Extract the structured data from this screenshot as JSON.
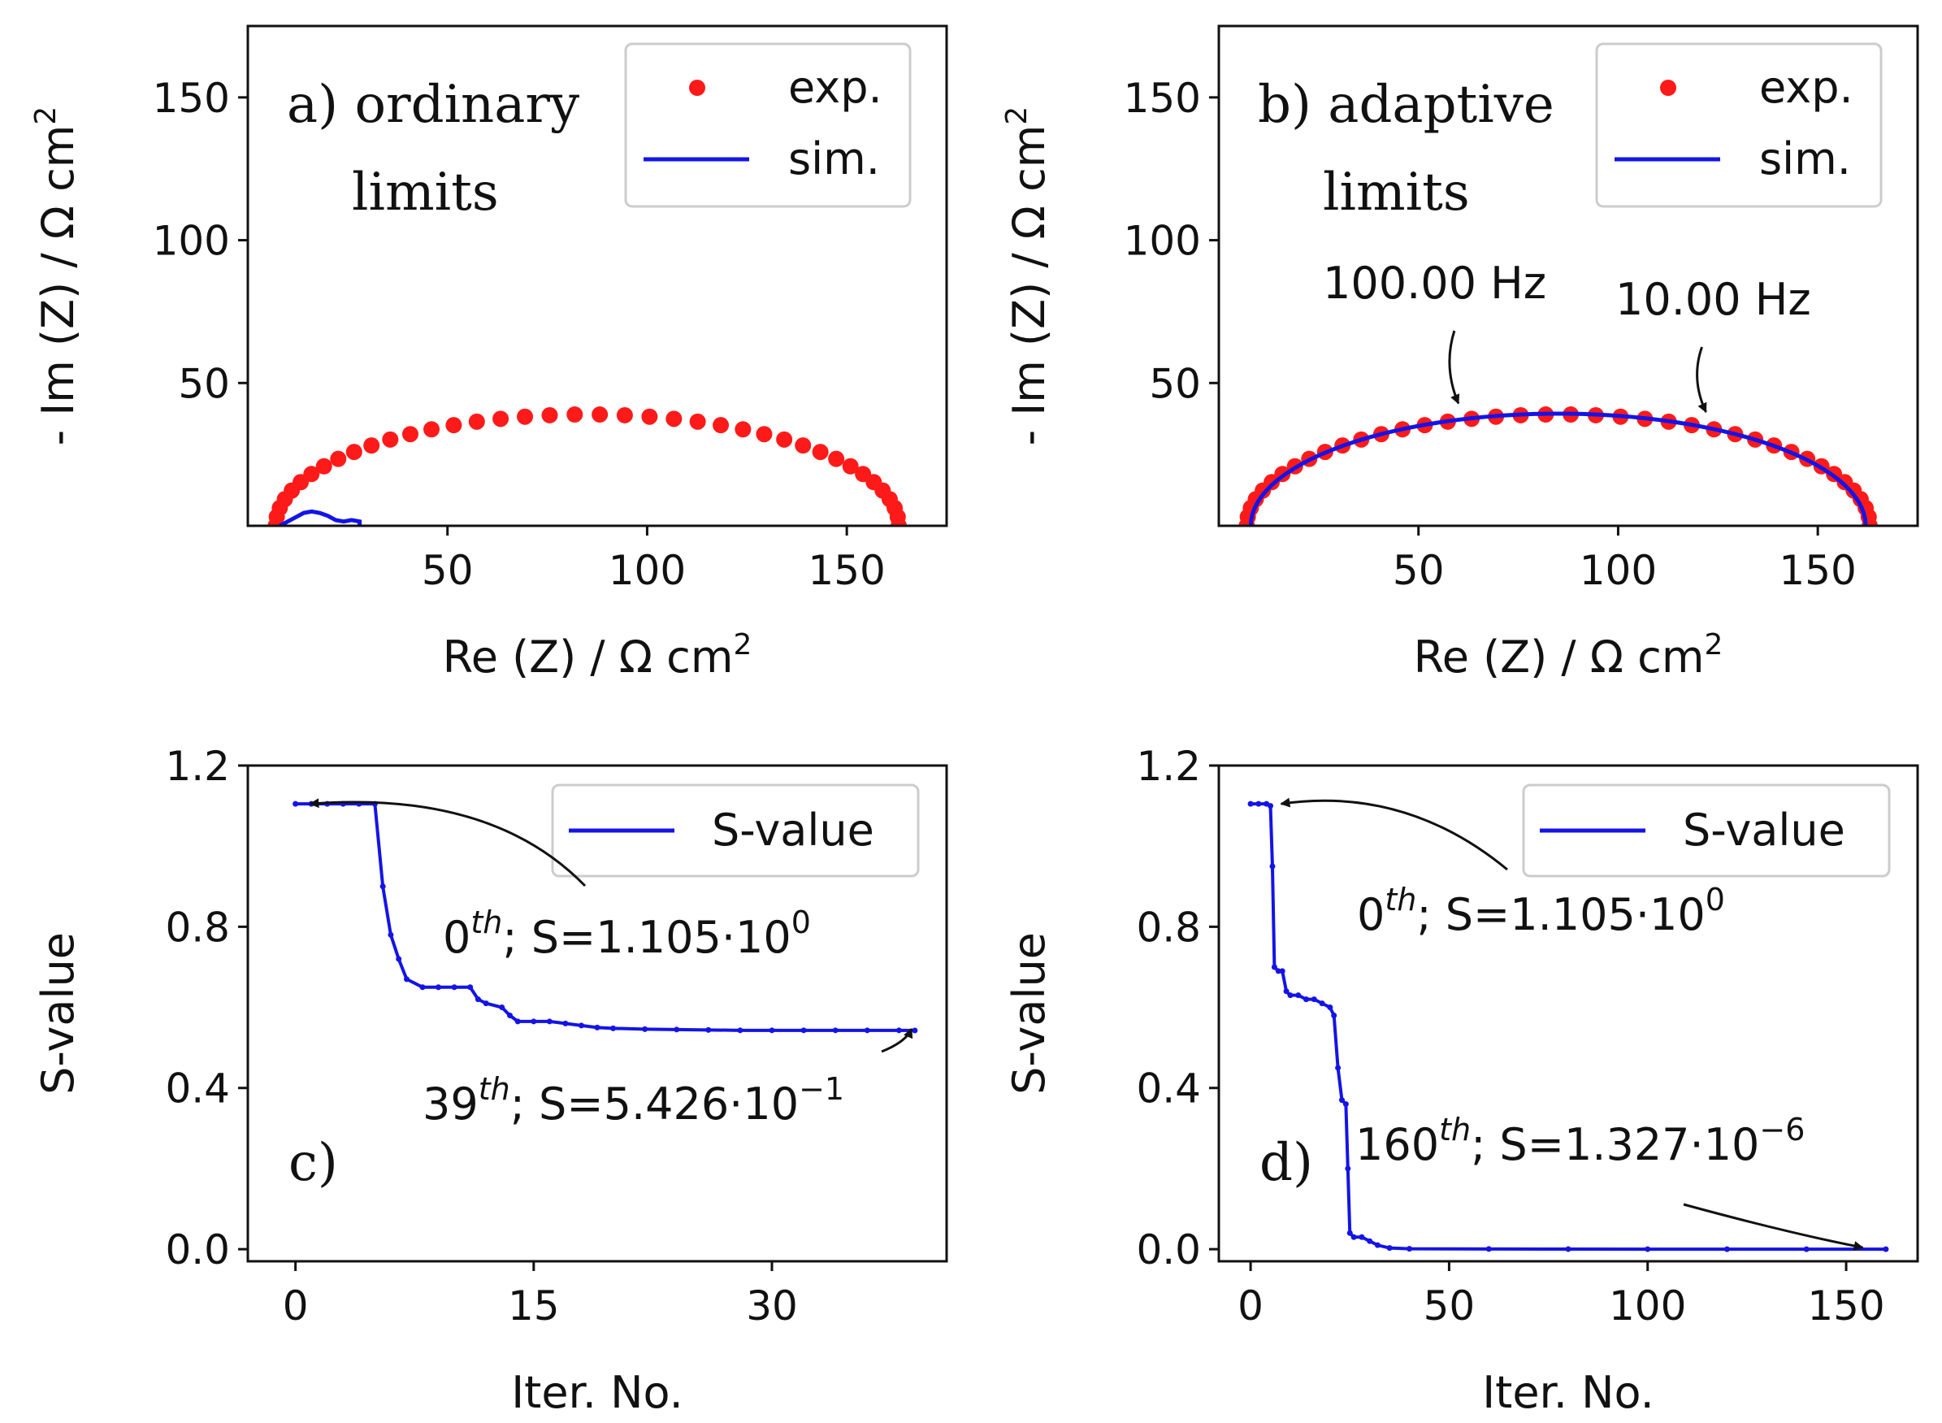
{
  "colors": {
    "exp": "#ff1a1a",
    "sim": "#1414e6",
    "axis": "#111111"
  },
  "chart_data": [
    {
      "id": "a",
      "type": "scatter",
      "panel_label": [
        "a) ordinary",
        "limits"
      ],
      "xlabel": "Re (Z) / Ω cm",
      "ylabel": "- Im (Z) / Ω cm",
      "unit_sup": "2",
      "xlim": [
        0,
        175
      ],
      "ylim": [
        0,
        175
      ],
      "xticks": [
        50,
        100,
        150
      ],
      "yticks": [
        50,
        100,
        150
      ],
      "legend": {
        "exp": "exp.",
        "sim": "sim."
      },
      "legend_location": "top-right",
      "exp": {
        "center_x": 85,
        "radius": 78,
        "n_points": 40
      },
      "sim": {
        "x": [
          8,
          10,
          12,
          14,
          16,
          18,
          20,
          22,
          24,
          26,
          28,
          28
        ],
        "y": [
          0,
          1.5,
          3,
          4.5,
          5,
          4.5,
          3.5,
          2,
          1.5,
          2,
          1.5,
          0
        ]
      }
    },
    {
      "id": "b",
      "type": "scatter",
      "panel_label": [
        "b) adaptive",
        "limits"
      ],
      "xlabel": "Re (Z) / Ω cm",
      "ylabel": "- Im (Z) / Ω cm",
      "unit_sup": "2",
      "xlim": [
        0,
        175
      ],
      "ylim": [
        0,
        175
      ],
      "xticks": [
        50,
        100,
        150
      ],
      "yticks": [
        50,
        100,
        150
      ],
      "legend": {
        "exp": "exp.",
        "sim": "sim."
      },
      "legend_location": "top-right",
      "exp": {
        "center_x": 85,
        "radius": 78,
        "n_points": 40
      },
      "sim": {
        "center_x": 85,
        "radius": 77,
        "n_points": 60
      },
      "annotations": [
        {
          "text": "100.00 Hz",
          "x": 60,
          "y": 40
        },
        {
          "text": "10.00 Hz",
          "x": 122,
          "y": 37
        }
      ]
    },
    {
      "id": "c",
      "type": "line",
      "panel_label": [
        "c)"
      ],
      "xlabel": "Iter. No.",
      "ylabel": "S-value",
      "xlim": [
        -3,
        41
      ],
      "ylim": [
        -0.03,
        1.2
      ],
      "xticks": [
        0,
        15,
        30
      ],
      "yticks": [
        "0.0",
        "0.4",
        "0.8",
        "1.2"
      ],
      "ytick_values": [
        0,
        0.4,
        0.8,
        1.2
      ],
      "legend": {
        "sim": "S-value"
      },
      "legend_location": "top-right",
      "x": [
        0,
        1,
        2,
        3,
        4,
        5,
        5.5,
        6,
        6.5,
        7,
        8,
        9,
        10,
        11,
        11.5,
        12,
        13,
        13.5,
        14,
        15,
        16,
        17,
        18,
        19,
        20,
        22,
        24,
        26,
        28,
        30,
        32,
        34,
        36,
        38,
        39
      ],
      "y": [
        1.105,
        1.105,
        1.105,
        1.105,
        1.105,
        1.105,
        0.9,
        0.78,
        0.72,
        0.67,
        0.65,
        0.65,
        0.65,
        0.65,
        0.62,
        0.61,
        0.6,
        0.58,
        0.565,
        0.565,
        0.565,
        0.56,
        0.555,
        0.55,
        0.548,
        0.546,
        0.545,
        0.544,
        0.543,
        0.543,
        0.543,
        0.543,
        0.543,
        0.543,
        0.5426
      ],
      "annotations": [
        {
          "iter": "0",
          "sup": "th",
          "s": "; S=1.105·10",
          "exp": "0",
          "x": 0,
          "y": 1.105
        },
        {
          "iter": "39",
          "sup": "th",
          "s": "; S=5.426·10",
          "exp": "−1",
          "x": 39,
          "y": 0.5426
        }
      ]
    },
    {
      "id": "d",
      "type": "line",
      "panel_label": [
        "d)"
      ],
      "xlabel": "Iter. No.",
      "ylabel": "S-value",
      "xlim": [
        -8,
        168
      ],
      "ylim": [
        -0.03,
        1.2
      ],
      "xticks": [
        0,
        50,
        100,
        150
      ],
      "yticks": [
        "0.0",
        "0.4",
        "0.8",
        "1.2"
      ],
      "ytick_values": [
        0,
        0.4,
        0.8,
        1.2
      ],
      "legend": {
        "sim": "S-value"
      },
      "legend_location": "top-right",
      "x": [
        0,
        2,
        4,
        5,
        5.5,
        6,
        7,
        8,
        9,
        10,
        12,
        14,
        16,
        18,
        20,
        21,
        22,
        23,
        24,
        24.5,
        25,
        26,
        28,
        30,
        32,
        35,
        40,
        60,
        80,
        100,
        120,
        140,
        160
      ],
      "y": [
        1.105,
        1.105,
        1.105,
        1.1,
        0.95,
        0.7,
        0.69,
        0.69,
        0.64,
        0.63,
        0.63,
        0.62,
        0.62,
        0.61,
        0.6,
        0.58,
        0.45,
        0.37,
        0.36,
        0.2,
        0.04,
        0.03,
        0.03,
        0.02,
        0.01,
        0.003,
        0.001,
        0.0005,
        0.0002,
        0.0001,
        1e-05,
        5e-06,
        1.327e-06
      ],
      "annotations": [
        {
          "iter": "0",
          "sup": "th",
          "s": "; S=1.105·10",
          "exp": "0",
          "x": 4,
          "y": 1.105
        },
        {
          "iter": "160",
          "sup": "th",
          "s": "; S=1.327·10",
          "exp": "−6",
          "x": 155,
          "y": 0.0
        }
      ]
    }
  ]
}
